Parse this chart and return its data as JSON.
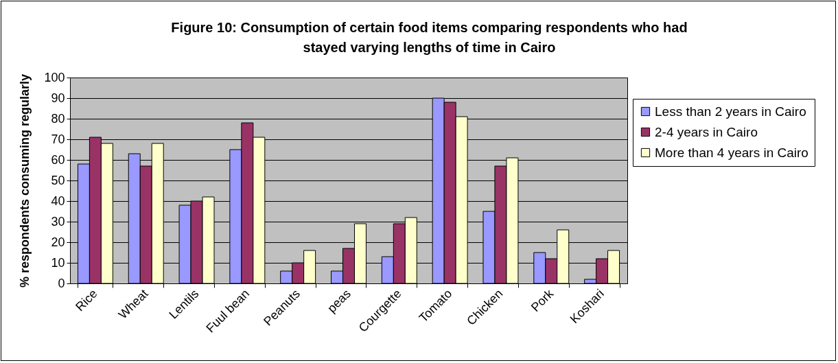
{
  "chart_data": {
    "type": "bar",
    "title": "Figure 10: Consumption of certain food items comparing respondents who had stayed varying lengths of time in Cairo",
    "ylabel": "% respondents consuming regularly",
    "categories": [
      "Rice",
      "Wheat",
      "Lentils",
      "Fuul bean",
      "Peanuts",
      "peas",
      "Courgette",
      "Tomato",
      "Chicken",
      "Pork",
      "Koshari"
    ],
    "series": [
      {
        "name": "Less than 2 years in Cairo",
        "color": "#9999ff",
        "values": [
          58,
          63,
          38,
          65,
          6,
          6,
          13,
          90,
          35,
          15,
          2
        ]
      },
      {
        "name": "2-4 years in Cairo",
        "color": "#993366",
        "values": [
          71,
          57,
          40,
          78,
          10,
          17,
          29,
          88,
          57,
          12,
          12
        ]
      },
      {
        "name": "More than 4 years in Cairo",
        "color": "#ffffcc",
        "values": [
          68,
          68,
          42,
          71,
          16,
          29,
          32,
          81,
          61,
          26,
          16
        ]
      }
    ],
    "ylim": [
      0,
      100
    ],
    "yticks": [
      0,
      10,
      20,
      30,
      40,
      50,
      60,
      70,
      80,
      90,
      100
    ],
    "grid": "y",
    "legend": "right"
  }
}
